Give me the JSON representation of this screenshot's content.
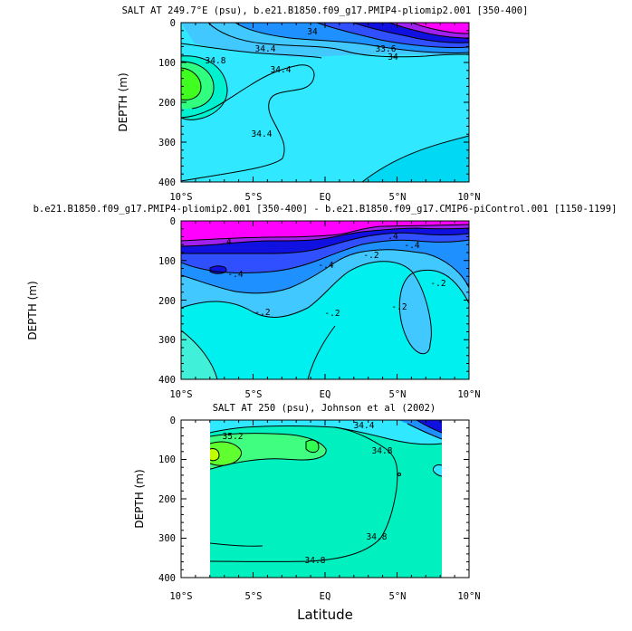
{
  "figure": {
    "shared_ylabel": "DEPTH (m)",
    "shared_xlabel": "Latitude"
  },
  "chart_data": [
    {
      "type": "contour",
      "title": "SALT AT 249.7°E (psu), b.e21.B1850.f09_g17.PMIP4-pliomip2.001 [350-400]",
      "xlabel": "",
      "ylabel": "DEPTH (m)",
      "xticks": [
        "10°S",
        "5°S",
        "EQ",
        "5°N",
        "10°N"
      ],
      "yticks": [
        "0",
        "100",
        "200",
        "300",
        "400"
      ],
      "xlim": [
        -10,
        10
      ],
      "ylim": [
        400,
        0
      ],
      "contour_labels": [
        "34",
        "34.4",
        "34.8",
        "34.4",
        "34.4",
        "33.6",
        "34"
      ],
      "colors": {
        "deep": "#00d8f4",
        "mid": "#30e8ff",
        "teal": "#00f0d0",
        "green": "#30ff80",
        "lime": "#40ff20",
        "blue1": "#1e90ff",
        "blue2": "#3050ff",
        "blue3": "#1010e0",
        "purple": "#a020f0",
        "magenta": "#ff00ff"
      }
    },
    {
      "type": "contour",
      "title": "b.e21.B1850.f09_g17.PMIP4-pliomip2.001 [350-400] - b.e21.B1850.f09_g17.CMIP6-piControl.001 [1150-1199]",
      "xlabel": "",
      "ylabel": "",
      "xticks": [
        "10°S",
        "5°S",
        "EQ",
        "5°N",
        "10°N"
      ],
      "yticks": [
        "0",
        "100",
        "200",
        "300",
        "400"
      ],
      "xlim": [
        -10,
        10
      ],
      "ylim": [
        400,
        0
      ],
      "contour_labels": [
        "-.2",
        "-.2",
        "-.2",
        "-.2",
        "-.2",
        "-.4",
        "-.4",
        "-.4",
        ".4",
        ".4"
      ]
    },
    {
      "type": "contour",
      "title": "SALT AT 250 (psu), Johnson et al (2002)",
      "xlabel": "Latitude",
      "ylabel": "DEPTH (m)",
      "xticks": [
        "10°S",
        "5°S",
        "EQ",
        "5°N",
        "10°N"
      ],
      "yticks": [
        "0",
        "100",
        "200",
        "300",
        "400"
      ],
      "xlim": [
        -10,
        10
      ],
      "ylim": [
        400,
        0
      ],
      "data_xlim": [
        -8.2,
        8.2
      ],
      "contour_labels": [
        "35.2",
        "34.4",
        "34.8",
        "34.8",
        "34.8"
      ]
    }
  ]
}
